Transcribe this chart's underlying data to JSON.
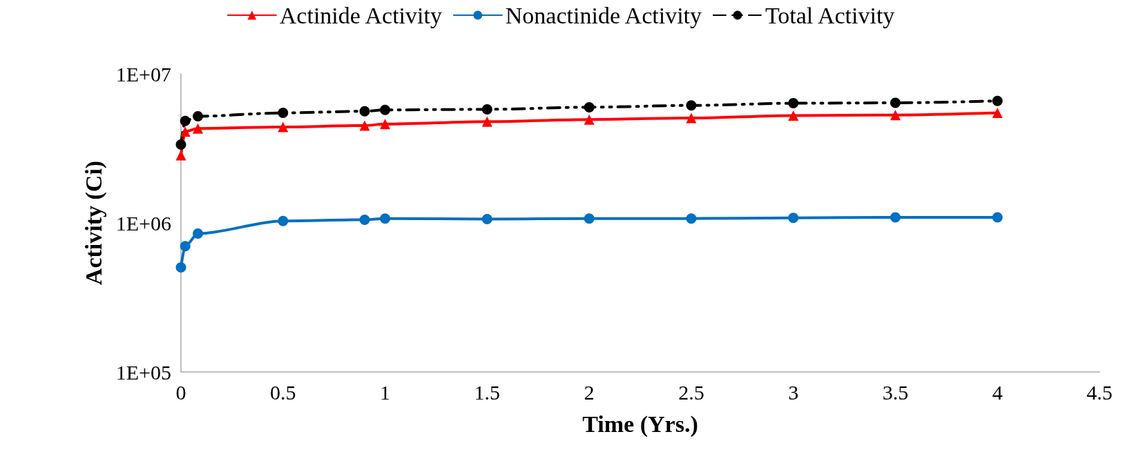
{
  "chart_data": {
    "type": "line",
    "xlabel": "Time (Yrs.)",
    "ylabel": "Activity (Ci)",
    "x": [
      0,
      0.021,
      0.083,
      0.5,
      0.9,
      1,
      1.5,
      2,
      2.5,
      3,
      3.5,
      4
    ],
    "series": [
      {
        "name": "Actinide Activity",
        "color": "#ff0000",
        "marker": "triangle",
        "line_style": "solid",
        "values": [
          2840000,
          4100000,
          4300000,
          4400000,
          4500000,
          4600000,
          4780000,
          4940000,
          5050000,
          5250000,
          5290000,
          5470000
        ]
      },
      {
        "name": "Nonactinide Activity",
        "color": "#0070c0",
        "marker": "circle",
        "line_style": "solid",
        "values": [
          503000,
          697000,
          847000,
          1030000,
          1050000,
          1070000,
          1060000,
          1070000,
          1070000,
          1080000,
          1090000,
          1090000
        ]
      },
      {
        "name": "Total Activity",
        "color": "#000000",
        "marker": "circle",
        "line_style": "dashed",
        "values": [
          3350000,
          4830000,
          5190000,
          5470000,
          5610000,
          5730000,
          5780000,
          5970000,
          6140000,
          6350000,
          6390000,
          6580000
        ]
      }
    ],
    "log": "y",
    "xlim": [
      0,
      4.5
    ],
    "xticks": [
      0,
      0.5,
      1,
      1.5,
      2,
      2.5,
      3,
      3.5,
      4,
      4.5
    ],
    "ylim": [
      100000,
      10000000
    ],
    "yticks": [
      {
        "value": 100000,
        "label": "1E+05"
      },
      {
        "value": 1000000,
        "label": "1E+06"
      },
      {
        "value": 10000000,
        "label": "1E+07"
      }
    ],
    "grid": false,
    "legend": "top"
  }
}
